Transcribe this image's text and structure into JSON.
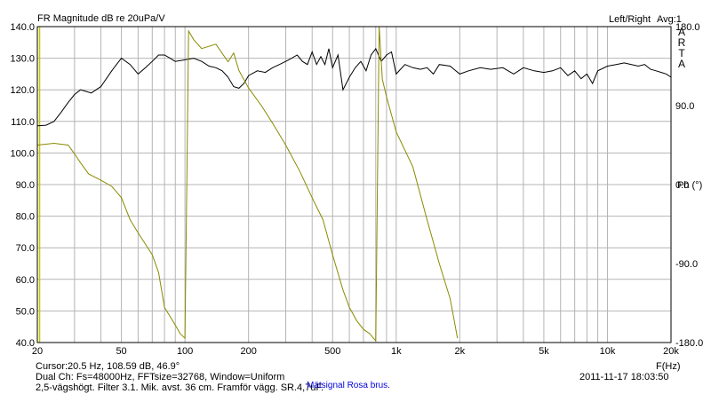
{
  "header": {
    "title": "FR Magnitude dB re 20uPa/V",
    "channel": "Left/Right",
    "avg_label": "Avg:1"
  },
  "brand": [
    "A",
    "R",
    "T",
    "A"
  ],
  "footer": {
    "cursor": "Cursor:20.5 Hz, 108.59 dB, 46.9°",
    "xunit": "F(Hz)",
    "dual_channel": "Dual Ch: Fs=48000Hz, FFTsize=32768, Window=Uniform",
    "datetime": "2011-11-17  18:03:50",
    "description": "2,5-vägshögt. Filter 3.1. Mik. avst. 36 cm. Framför vägg. SR.4,7uF.",
    "signal": "Mätsignal Rosa brus."
  },
  "colors": {
    "magnitude": "#000000",
    "phase": "#8a8a00",
    "cursor": "#c8c800",
    "signal_text": "#0000dd",
    "grid": "#b4b4b4",
    "frame": "#000000"
  },
  "chart_data": {
    "type": "line",
    "xscale": "log",
    "xlim": [
      20,
      20000
    ],
    "ylim": [
      40,
      140
    ],
    "y2lim": [
      -180,
      180
    ],
    "ylabel": "",
    "y2label": "Ph (°)",
    "xlabel": "F(Hz)",
    "grid": true,
    "legend": "none",
    "cursor_x": 20.5,
    "x_ticks": [
      {
        "value": 20,
        "label": "20"
      },
      {
        "value": 50,
        "label": "50"
      },
      {
        "value": 100,
        "label": "100"
      },
      {
        "value": 200,
        "label": "200"
      },
      {
        "value": 500,
        "label": "500"
      },
      {
        "value": 1000,
        "label": "1k"
      },
      {
        "value": 2000,
        "label": "2k"
      },
      {
        "value": 5000,
        "label": "5k"
      },
      {
        "value": 10000,
        "label": "10k"
      },
      {
        "value": 20000,
        "label": "20k"
      }
    ],
    "y_ticks": [
      {
        "value": 140,
        "label": "140.0"
      },
      {
        "value": 130,
        "label": "130.0"
      },
      {
        "value": 120,
        "label": "120.0"
      },
      {
        "value": 110,
        "label": "110.0"
      },
      {
        "value": 100,
        "label": "100.0"
      },
      {
        "value": 90,
        "label": "90.0"
      },
      {
        "value": 80,
        "label": "80.0"
      },
      {
        "value": 70,
        "label": "70.0"
      },
      {
        "value": 60,
        "label": "60.0"
      },
      {
        "value": 50,
        "label": "50.0"
      },
      {
        "value": 40,
        "label": "40.0"
      }
    ],
    "y2_ticks": [
      {
        "value": 180,
        "label": "180.0"
      },
      {
        "value": 90,
        "label": "90.0"
      },
      {
        "value": 0,
        "label": "0.0"
      },
      {
        "value": -90,
        "label": "-90.0"
      },
      {
        "value": -180,
        "label": "-180.0"
      }
    ],
    "series": [
      {
        "axis": "left",
        "x": [
          20,
          22,
          24,
          26,
          28,
          30,
          32,
          34,
          36,
          40,
          45,
          50,
          55,
          60,
          65,
          70,
          75,
          80,
          85,
          90,
          100,
          110,
          120,
          130,
          140,
          150,
          160,
          170,
          180,
          190,
          200,
          220,
          240,
          260,
          280,
          300,
          320,
          340,
          360,
          380,
          400,
          420,
          440,
          460,
          480,
          500,
          530,
          560,
          600,
          640,
          680,
          720,
          760,
          800,
          850,
          900,
          950,
          1000,
          1100,
          1200,
          1300,
          1400,
          1500,
          1600,
          1800,
          2000,
          2200,
          2500,
          2800,
          3200,
          3600,
          4000,
          4500,
          5000,
          5500,
          6000,
          6500,
          7000,
          7500,
          8000,
          8500,
          9000,
          10000,
          11000,
          12000,
          13000,
          14000,
          15000,
          16000,
          17000,
          18000,
          19000,
          20000
        ],
        "values": [
          108.6,
          108.8,
          110,
          113,
          116,
          118.5,
          120,
          119.5,
          119,
          121,
          126,
          130,
          128,
          125,
          127,
          129,
          131,
          131,
          130,
          129,
          129.5,
          130,
          129,
          127.5,
          127,
          126,
          124,
          121,
          120.5,
          122,
          124.5,
          126,
          125.5,
          127,
          128,
          129,
          130,
          131,
          129,
          128,
          132,
          128,
          130.5,
          128,
          133,
          127,
          131,
          120,
          124,
          127,
          129,
          126,
          131,
          133,
          129,
          131,
          132,
          125,
          128,
          127,
          126.5,
          127,
          125,
          128,
          127.5,
          125,
          126,
          127,
          126.5,
          127,
          125,
          127,
          126,
          125.5,
          126,
          127,
          124.5,
          126,
          123.5,
          125,
          122,
          126,
          127.5,
          128,
          128.5,
          128,
          127.5,
          128,
          126.5,
          126,
          125.5,
          125,
          124
        ]
      },
      {
        "axis": "right",
        "x": [
          20,
          24,
          28,
          30,
          32,
          35,
          40,
          45,
          50,
          55,
          60,
          70,
          75,
          80,
          90,
          95,
          100,
          102,
          104,
          110,
          120,
          140,
          160,
          170,
          180,
          200,
          230,
          260,
          300,
          350,
          400,
          450,
          500,
          560,
          600,
          650,
          700,
          750,
          780,
          800,
          830,
          860,
          900,
          1000,
          1200,
          1400,
          1600,
          1800,
          1900,
          1950
        ],
        "values": [
          45,
          47,
          45,
          35,
          25,
          12,
          5,
          -2,
          -15,
          -40,
          -55,
          -80,
          -100,
          -140,
          -160,
          -170,
          -175,
          0,
          175,
          165,
          155,
          160,
          140,
          150,
          130,
          110,
          90,
          70,
          45,
          15,
          -15,
          -40,
          -80,
          -120,
          -140,
          -155,
          -165,
          -170,
          -175,
          -178,
          180,
          120,
          100,
          60,
          20,
          -40,
          -90,
          -130,
          -160,
          -175
        ]
      }
    ]
  }
}
